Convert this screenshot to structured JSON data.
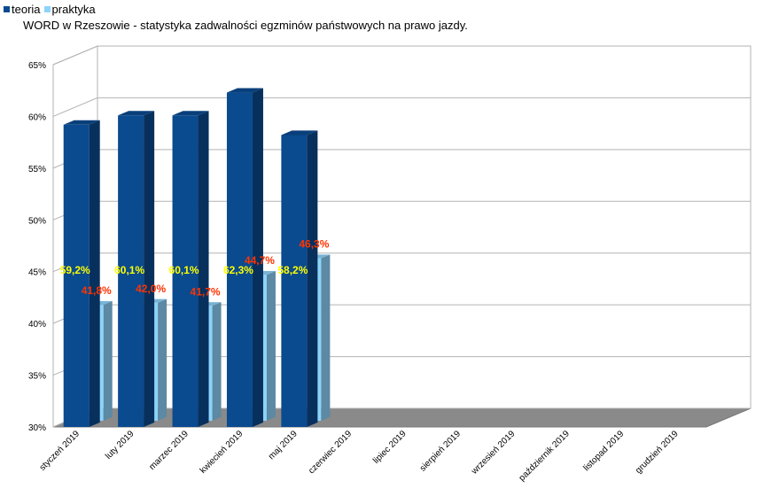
{
  "chart_data": {
    "type": "bar",
    "title": "WORD w Rzeszowie - statystyka zadwalności egzminów państwowych na prawo jazdy.",
    "xlabel": "",
    "ylabel": "",
    "ylim": [
      30,
      65
    ],
    "yticks": [
      "30%",
      "35%",
      "40%",
      "45%",
      "50%",
      "55%",
      "60%",
      "65%"
    ],
    "grid": true,
    "legend_position": "top-left",
    "categories": [
      "styczeń 2019",
      "luty 2019",
      "marzec 2019",
      "kwiecień 2019",
      "maj 2019",
      "czerwiec 2019",
      "lipiec 2019",
      "sierpień 2019",
      "wrzesień 2019",
      "październik 2019",
      "listopad 2019",
      "grudzień 2019"
    ],
    "series": [
      {
        "name": "teoria",
        "color": "#0a4a8f",
        "values": [
          59.2,
          60.1,
          60.1,
          62.3,
          58.2,
          null,
          null,
          null,
          null,
          null,
          null,
          null
        ],
        "labels": [
          "59,2%",
          "60,1%",
          "60,1%",
          "62,3%",
          "58,2%",
          "",
          "",
          "",
          "",
          "",
          "",
          ""
        ],
        "label_color": "#ffff00"
      },
      {
        "name": "praktyka",
        "color": "#8dd3fa",
        "values": [
          41.8,
          42.0,
          41.7,
          44.7,
          46.3,
          null,
          null,
          null,
          null,
          null,
          null,
          null
        ],
        "labels": [
          "41,8%",
          "42,0%",
          "41,7%",
          "44,7%",
          "46,3%",
          "",
          "",
          "",
          "",
          "",
          "",
          ""
        ],
        "label_color": "#ff3300"
      }
    ]
  }
}
